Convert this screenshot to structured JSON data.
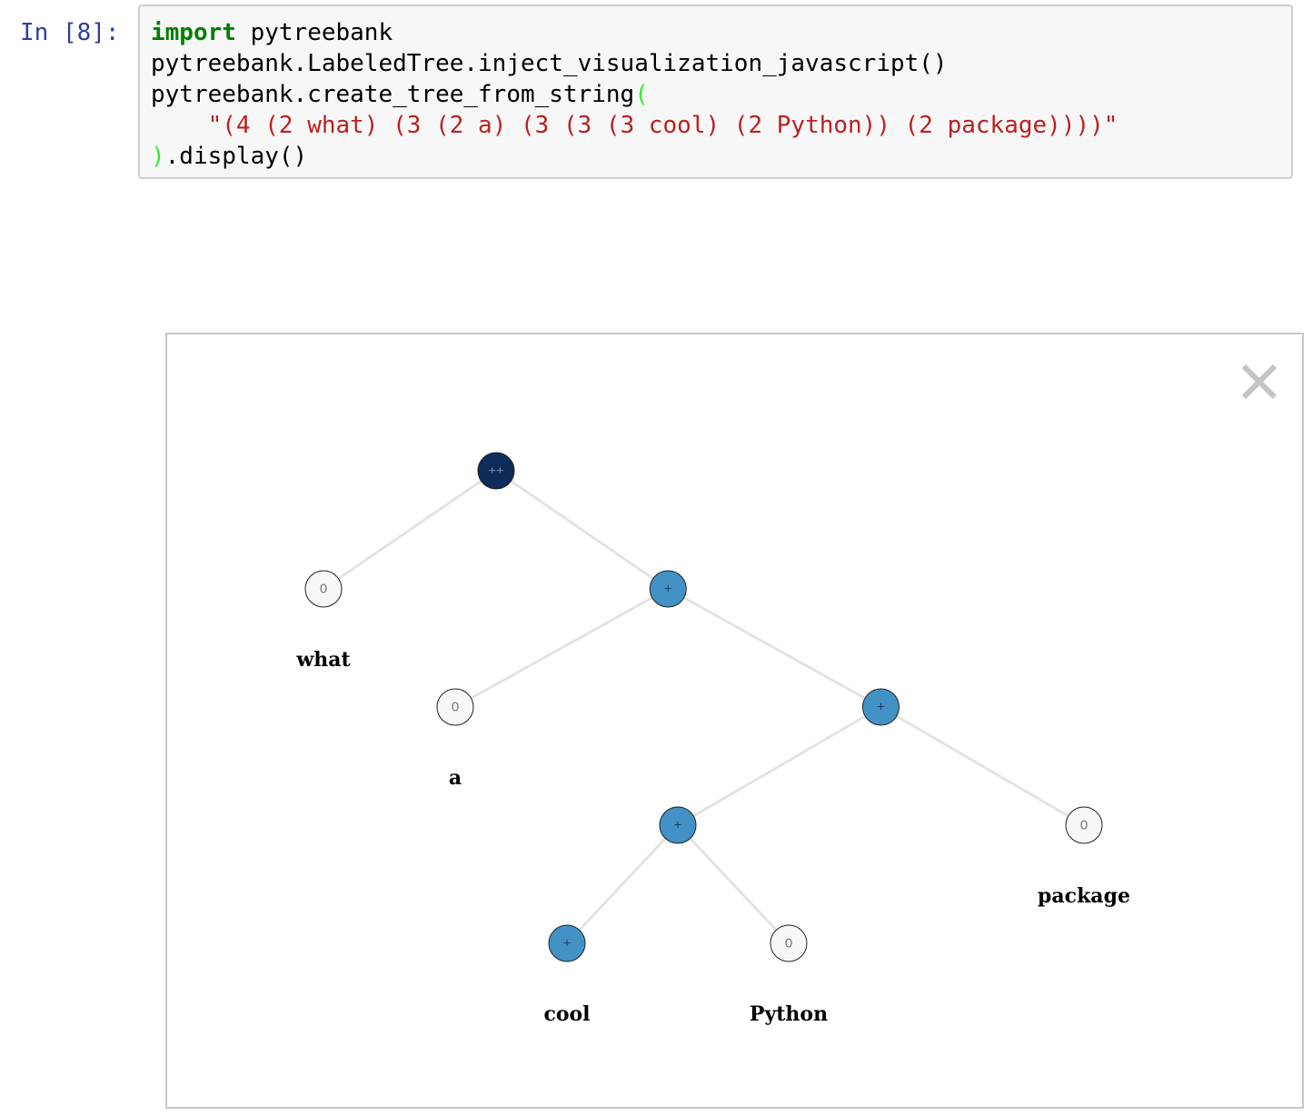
{
  "cell": {
    "prompt": "In [8]:",
    "code": {
      "line1_kw": "import",
      "line1_rest": " pytreebank",
      "line2": "pytreebank.LabeledTree.inject_visualization_javascript()",
      "line3_text": "pytreebank.create_tree_from_string",
      "line3_paren": "(",
      "line4_indent": "    ",
      "line4_string": "\"(4 (2 what) (3 (2 a) (3 (3 (3 cool) (2 Python)) (2 package))))\"",
      "line5_paren": ")",
      "line5_rest": ".display()"
    }
  },
  "output": {
    "close_symbol": "×",
    "tree": {
      "colors": {
        "very_positive": "#0d2c59",
        "positive": "#4292c6",
        "neutral": "#f7f7f7",
        "edge": "#e3e3e3"
      },
      "root": {
        "label": "++",
        "sentiment": "very_positive",
        "children": [
          {
            "label": "0",
            "sentiment": "neutral",
            "word": "what"
          },
          {
            "label": "+",
            "sentiment": "positive",
            "children": [
              {
                "label": "0",
                "sentiment": "neutral",
                "word": "a"
              },
              {
                "label": "+",
                "sentiment": "positive",
                "children": [
                  {
                    "label": "+",
                    "sentiment": "positive",
                    "children": [
                      {
                        "label": "+",
                        "sentiment": "positive",
                        "word": "cool"
                      },
                      {
                        "label": "0",
                        "sentiment": "neutral",
                        "word": "Python"
                      }
                    ]
                  },
                  {
                    "label": "0",
                    "sentiment": "neutral",
                    "word": "package"
                  }
                ]
              }
            ]
          }
        ]
      }
    }
  }
}
